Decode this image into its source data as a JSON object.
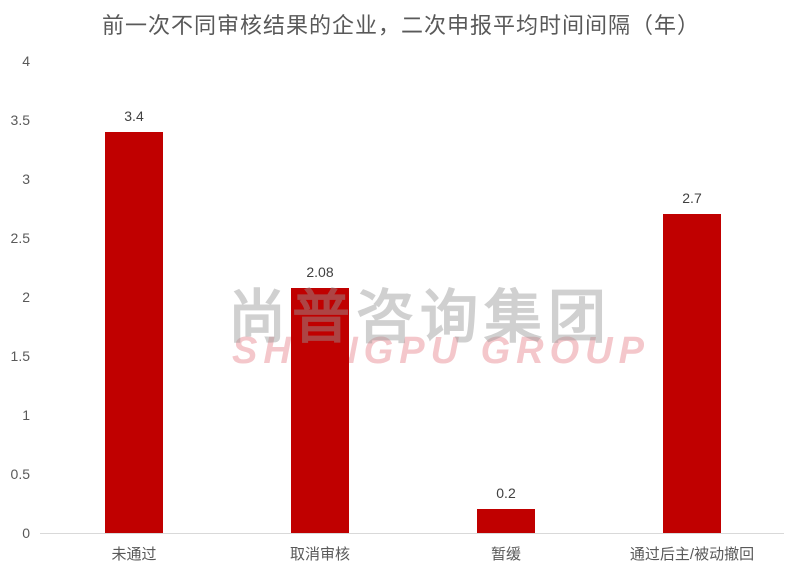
{
  "chart_data": {
    "type": "bar",
    "title": "前一次不同审核结果的企业，二次申报平均时间间隔（年）",
    "categories": [
      "未通过",
      "取消审核",
      "暂缓",
      "通过后主/被动撤回"
    ],
    "values": [
      3.4,
      2.08,
      0.2,
      2.7
    ],
    "value_labels": [
      "3.4",
      "2.08",
      "0.2",
      "2.7"
    ],
    "xlabel": "",
    "ylabel": "",
    "ylim": [
      0,
      4
    ],
    "yticks": [
      "0",
      "0.5",
      "1",
      "1.5",
      "2",
      "2.5",
      "3",
      "3.5",
      "4"
    ],
    "grid": false,
    "legend": "none",
    "bar_color": "#C00000"
  },
  "watermark": {
    "cn": "尚普咨询集团",
    "en": "SHANGPU GROUP"
  }
}
